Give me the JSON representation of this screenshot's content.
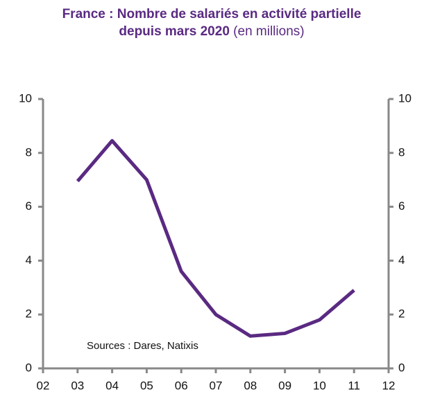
{
  "chart_data": {
    "type": "line",
    "title": "France : Nombre de salariés en activité partielle depuis mars 2020",
    "subtitle": "(en millions)",
    "annotation": "Sources : Dares, Natixis",
    "categories": [
      "02",
      "03",
      "04",
      "05",
      "06",
      "07",
      "08",
      "09",
      "10",
      "11",
      "12"
    ],
    "series": [
      {
        "name": "Salariés en activité partielle",
        "color": "#5a2a82",
        "values": [
          null,
          6.95,
          8.45,
          7.0,
          3.6,
          2.0,
          1.2,
          1.3,
          1.8,
          2.9,
          null
        ]
      }
    ],
    "ylim": [
      0,
      10
    ],
    "yticks": [
      0,
      2,
      4,
      6,
      8,
      10
    ],
    "y2lim": [
      0,
      10
    ],
    "y2ticks": [
      0,
      2,
      4,
      6,
      8,
      10
    ],
    "legend": false,
    "grid": false
  }
}
